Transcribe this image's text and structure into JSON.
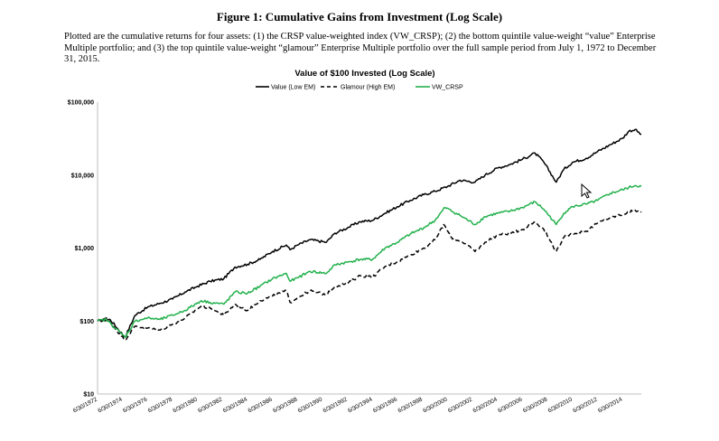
{
  "figure": {
    "title": "Figure 1: Cumulative Gains from Investment (Log Scale)",
    "caption": "Plotted are the cumulative returns for four assets: (1) the CRSP value-weighted index (VW_CRSP); (2) the bottom quintile value-weight “value” Enterprise Multiple portfolio; and (3) the top quintile value-weight “glamour” Enterprise Multiple portfolio over the full sample period from July 1, 1972 to December 31, 2015."
  },
  "chart_data": {
    "type": "line",
    "title": "Value of $100 Invested (Log Scale)",
    "xlabel": "",
    "ylabel": "",
    "yscale": "log",
    "ylim": [
      10,
      100000
    ],
    "yticks": [
      10,
      100,
      1000,
      10000,
      100000
    ],
    "ytick_labels": [
      "$10",
      "$100",
      "$1,000",
      "$10,000",
      "$100,000"
    ],
    "xlim": [
      1972.5,
      2016.0
    ],
    "xtick_labels": [
      "6/30/1972",
      "6/30/1974",
      "6/30/1976",
      "6/30/1978",
      "6/30/1980",
      "6/30/1982",
      "6/30/1984",
      "6/30/1986",
      "6/30/1988",
      "6/30/1990",
      "6/30/1992",
      "6/30/1994",
      "6/30/1996",
      "6/30/1998",
      "6/30/2000",
      "6/30/2002",
      "6/30/2004",
      "6/30/2006",
      "6/30/2008",
      "6/30/2010",
      "6/30/2012",
      "6/30/2014"
    ],
    "legend_position": "top-center",
    "grid": false,
    "series": [
      {
        "name": "Value (Low EM)",
        "color": "#000000",
        "style": "solid",
        "x": [
          1972.5,
          1973.5,
          1974.7,
          1975.5,
          1976.5,
          1977.5,
          1978.5,
          1979.5,
          1980.5,
          1981.5,
          1982.6,
          1983.5,
          1984.5,
          1985.5,
          1986.5,
          1987.6,
          1987.9,
          1988.5,
          1989.5,
          1990.8,
          1991.5,
          1992.5,
          1993.5,
          1994.5,
          1995.5,
          1996.5,
          1997.5,
          1998.6,
          1999.5,
          2000.5,
          2001.5,
          2002.7,
          2003.5,
          2004.5,
          2005.5,
          2006.5,
          2007.5,
          2008.2,
          2009.2,
          2009.8,
          2010.5,
          2011.6,
          2012.5,
          2013.5,
          2014.5,
          2015.0,
          2015.5,
          2016.0
        ],
        "y": [
          100,
          105,
          60,
          120,
          155,
          175,
          200,
          250,
          300,
          350,
          380,
          550,
          600,
          700,
          900,
          1100,
          950,
          1100,
          1300,
          1200,
          1600,
          1900,
          2300,
          2400,
          3000,
          3700,
          4500,
          5400,
          6000,
          7000,
          8500,
          8000,
          10000,
          12500,
          14000,
          16500,
          20000,
          15000,
          8000,
          12000,
          15000,
          17000,
          21000,
          26000,
          32000,
          40000,
          42000,
          36000
        ]
      },
      {
        "name": "Glamour (High EM)",
        "color": "#000000",
        "style": "dashed",
        "x": [
          1972.5,
          1973.2,
          1974.7,
          1975.5,
          1976.5,
          1977.5,
          1978.5,
          1979.5,
          1980.8,
          1981.5,
          1982.6,
          1983.5,
          1984.5,
          1985.5,
          1986.5,
          1987.6,
          1987.9,
          1988.5,
          1989.5,
          1990.8,
          1991.5,
          1992.5,
          1993.5,
          1994.5,
          1995.5,
          1996.5,
          1997.5,
          1998.6,
          1999.5,
          2000.2,
          2000.8,
          2001.7,
          2002.7,
          2003.5,
          2004.5,
          2005.5,
          2006.5,
          2007.5,
          2008.2,
          2009.2,
          2009.8,
          2010.5,
          2011.6,
          2012.5,
          2013.5,
          2014.5,
          2015.5,
          2016.0
        ],
        "y": [
          100,
          110,
          55,
          85,
          80,
          75,
          90,
          110,
          160,
          150,
          120,
          170,
          140,
          190,
          220,
          260,
          180,
          210,
          260,
          230,
          300,
          330,
          420,
          400,
          560,
          650,
          800,
          1000,
          1300,
          2100,
          1400,
          1200,
          900,
          1200,
          1500,
          1600,
          1800,
          2300,
          1800,
          900,
          1400,
          1600,
          1700,
          2200,
          2600,
          2900,
          3300,
          3100
        ]
      },
      {
        "name": "VW_CRSP",
        "color": "#22b14c",
        "style": "solid",
        "x": [
          1972.5,
          1973.2,
          1974.7,
          1975.5,
          1976.5,
          1977.5,
          1978.5,
          1979.5,
          1980.8,
          1981.5,
          1982.6,
          1983.5,
          1984.5,
          1985.5,
          1986.5,
          1987.6,
          1987.9,
          1988.5,
          1989.5,
          1990.8,
          1991.5,
          1992.5,
          1993.5,
          1994.5,
          1995.5,
          1996.5,
          1997.5,
          1998.6,
          1999.5,
          2000.3,
          2001.5,
          2002.7,
          2003.5,
          2004.5,
          2005.5,
          2006.5,
          2007.5,
          2008.2,
          2009.2,
          2009.8,
          2010.5,
          2011.6,
          2012.5,
          2013.5,
          2014.5,
          2015.5,
          2016.0
        ],
        "y": [
          100,
          105,
          60,
          100,
          110,
          105,
          120,
          140,
          190,
          180,
          170,
          250,
          240,
          300,
          380,
          450,
          350,
          390,
          480,
          450,
          590,
          640,
          700,
          700,
          1000,
          1200,
          1550,
          1900,
          2400,
          3600,
          2800,
          2100,
          2700,
          3000,
          3200,
          3600,
          4300,
          3400,
          2100,
          3000,
          3700,
          4000,
          4500,
          5600,
          6300,
          7200,
          7000
        ]
      }
    ]
  }
}
